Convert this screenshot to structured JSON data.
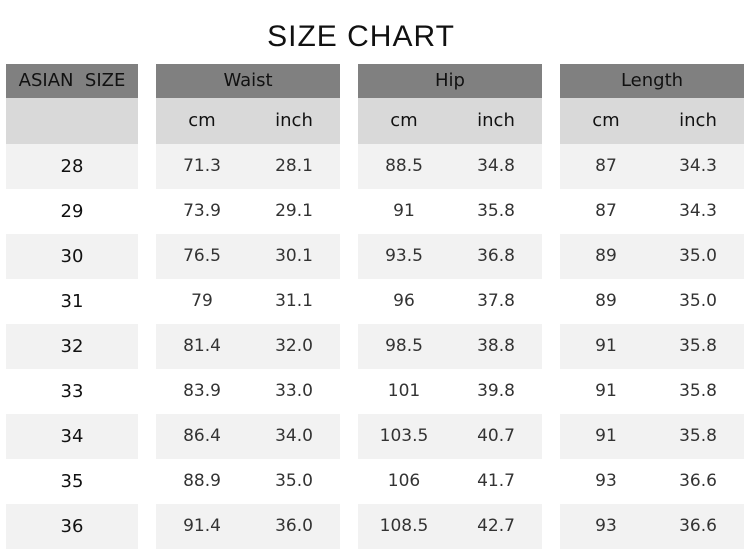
{
  "title": "SIZE CHART",
  "headers": {
    "size": "ASIAN  SIZE",
    "waist": "Waist",
    "hip": "Hip",
    "length": "Length"
  },
  "units": {
    "cm": "cm",
    "inch": "inch"
  },
  "rows": [
    {
      "size": "28",
      "waist_cm": "71.3",
      "waist_in": "28.1",
      "hip_cm": "88.5",
      "hip_in": "34.8",
      "len_cm": "87",
      "len_in": "34.3"
    },
    {
      "size": "29",
      "waist_cm": "73.9",
      "waist_in": "29.1",
      "hip_cm": "91",
      "hip_in": "35.8",
      "len_cm": "87",
      "len_in": "34.3"
    },
    {
      "size": "30",
      "waist_cm": "76.5",
      "waist_in": "30.1",
      "hip_cm": "93.5",
      "hip_in": "36.8",
      "len_cm": "89",
      "len_in": "35.0"
    },
    {
      "size": "31",
      "waist_cm": "79",
      "waist_in": "31.1",
      "hip_cm": "96",
      "hip_in": "37.8",
      "len_cm": "89",
      "len_in": "35.0"
    },
    {
      "size": "32",
      "waist_cm": "81.4",
      "waist_in": "32.0",
      "hip_cm": "98.5",
      "hip_in": "38.8",
      "len_cm": "91",
      "len_in": "35.8"
    },
    {
      "size": "33",
      "waist_cm": "83.9",
      "waist_in": "33.0",
      "hip_cm": "101",
      "hip_in": "39.8",
      "len_cm": "91",
      "len_in": "35.8"
    },
    {
      "size": "34",
      "waist_cm": "86.4",
      "waist_in": "34.0",
      "hip_cm": "103.5",
      "hip_in": "40.7",
      "len_cm": "91",
      "len_in": "35.8"
    },
    {
      "size": "35",
      "waist_cm": "88.9",
      "waist_in": "35.0",
      "hip_cm": "106",
      "hip_in": "41.7",
      "len_cm": "93",
      "len_in": "36.6"
    },
    {
      "size": "36",
      "waist_cm": "91.4",
      "waist_in": "36.0",
      "hip_cm": "108.5",
      "hip_in": "42.7",
      "len_cm": "93",
      "len_in": "36.6"
    }
  ],
  "colors": {
    "header": "#808080",
    "subheader": "#d9d9d9",
    "stripe": "#f2f2f2"
  }
}
